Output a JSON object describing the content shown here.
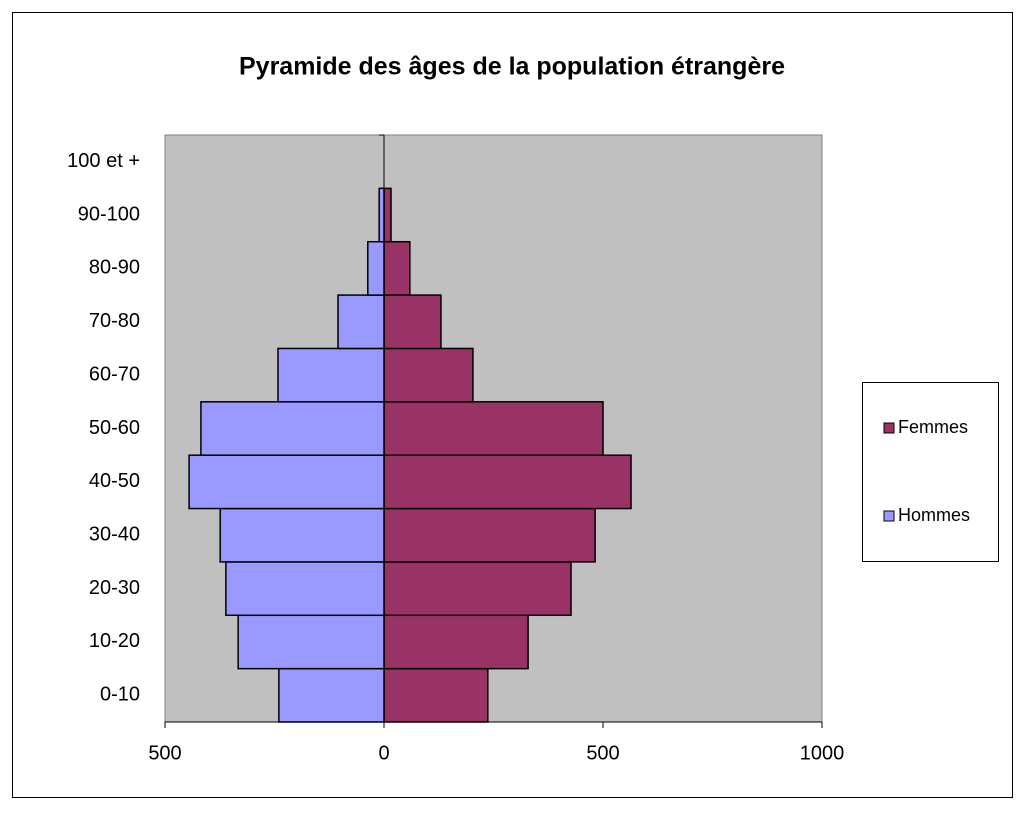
{
  "chart_data": {
    "type": "bar",
    "orientation": "horizontal",
    "stacked": "pyramid",
    "title": "Pyramide des âges de la population étrangère",
    "categories": [
      "0-10",
      "10-20",
      "20-30",
      "30-40",
      "40-50",
      "50-60",
      "60-70",
      "70-80",
      "80-90",
      "90-100",
      "100 et +"
    ],
    "series": [
      {
        "name": "Femmes",
        "color": "#993366",
        "values": [
          237,
          329,
          427,
          482,
          564,
          500,
          203,
          130,
          59,
          16,
          0
        ]
      },
      {
        "name": "Hommes",
        "color": "#9999ff",
        "values": [
          -240,
          -333,
          -361,
          -374,
          -445,
          -418,
          -242,
          -105,
          -37,
          -11,
          0
        ]
      }
    ],
    "xlim": [
      -500,
      1000
    ],
    "xticks": [
      {
        "value": -500,
        "label": "500"
      },
      0,
      500,
      1000
    ],
    "plot_background": "#c0c0c0",
    "legend": "right"
  }
}
